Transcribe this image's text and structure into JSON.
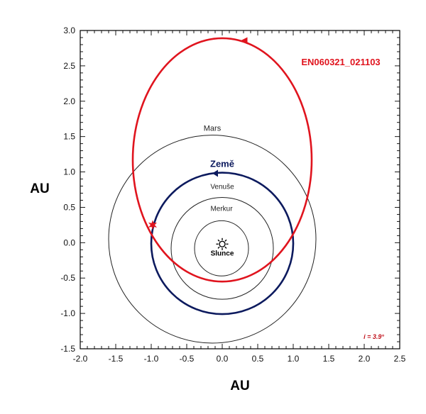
{
  "chart_data": {
    "type": "orbit-diagram",
    "xlabel": "AU",
    "ylabel": "AU",
    "xlim": [
      -2.0,
      2.5
    ],
    "ylim": [
      -1.5,
      3.0
    ],
    "x_ticks": [
      "-2.0",
      "-1.5",
      "-1.0",
      "-0.5",
      "0.0",
      "0.5",
      "1.0",
      "1.5",
      "2.0",
      "2.5"
    ],
    "y_ticks": [
      "3.0",
      "2.5",
      "2.0",
      "1.5",
      "1.0",
      "0.5",
      "0.0",
      "-0.5",
      "-1.0",
      "-1.5"
    ],
    "sun": {
      "label": "Slunce",
      "x": 0.0,
      "y": -0.1
    },
    "planets": [
      {
        "name": "Merkur",
        "cx": -0.01,
        "cy": -0.08,
        "rx": 0.38,
        "ry": 0.39,
        "color": "#222222",
        "bold": false
      },
      {
        "name": "Venuše",
        "cx": 0.0,
        "cy": -0.08,
        "rx": 0.72,
        "ry": 0.72,
        "color": "#222222",
        "bold": false
      },
      {
        "name": "Země",
        "cx": 0.0,
        "cy": -0.01,
        "rx": 1.0,
        "ry": 1.0,
        "color": "#0c1a5e",
        "bold": true
      },
      {
        "name": "Mars",
        "cx": -0.14,
        "cy": 0.05,
        "rx": 1.46,
        "ry": 1.47,
        "color": "#222222",
        "bold": false
      }
    ],
    "object": {
      "name": "EN060321_021103",
      "cx": 0.0,
      "cy": 1.17,
      "rx": 1.26,
      "ry": 1.72,
      "color": "#e0141e"
    },
    "impact_point": {
      "x": -0.98,
      "y": 0.25
    },
    "inclination_label": "i = 3.9°"
  }
}
